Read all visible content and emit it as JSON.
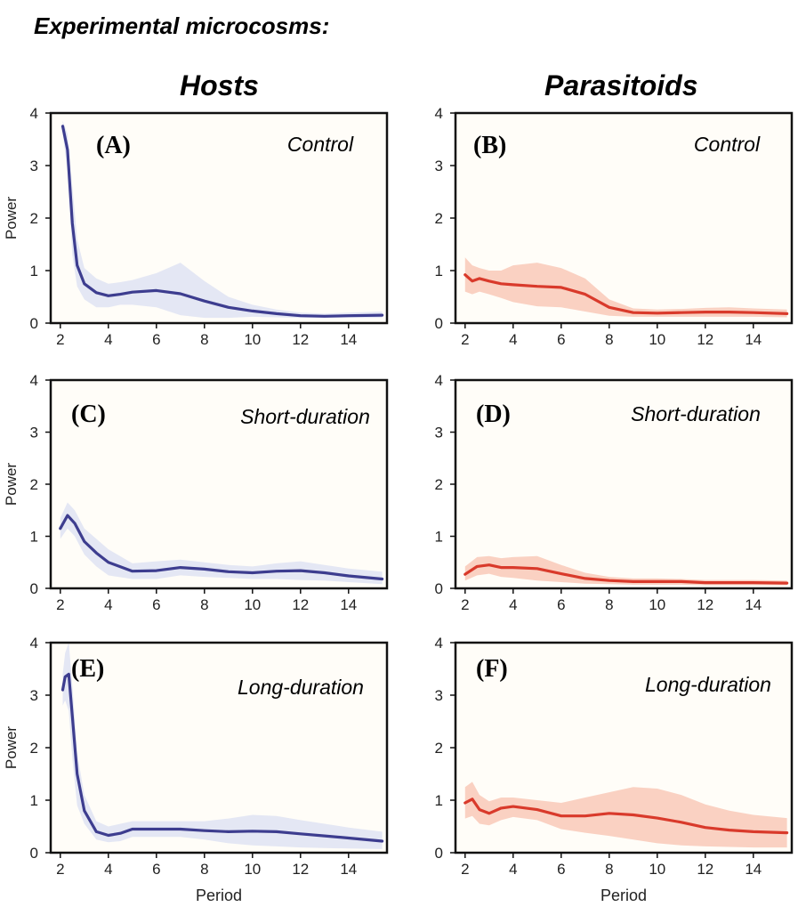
{
  "figure_title": "Experimental microcosms:",
  "column_titles": [
    "Hosts",
    "Parasitoids"
  ],
  "colors": {
    "hosts_line": "#3d3d8f",
    "hosts_band": "#dfe3f3",
    "parasitoids_line": "#d93a2b",
    "parasitoids_band": "#f9c9b8",
    "panel_bg": "#fffdf8",
    "frame": "#111111"
  },
  "chart_data": [
    {
      "type": "line",
      "panel": "(A)",
      "column": "Hosts",
      "treatment": "Control",
      "xlabel": "",
      "ylabel": "Power",
      "xlim": [
        1.6,
        15.6
      ],
      "ylim": [
        0,
        4
      ],
      "x_ticks": [
        2,
        4,
        6,
        8,
        10,
        12,
        14
      ],
      "y_ticks": [
        0,
        1,
        2,
        3,
        4
      ],
      "x": [
        2.1,
        2.3,
        2.5,
        2.7,
        3,
        3.5,
        4,
        4.5,
        5,
        6,
        7,
        8,
        9,
        10,
        11,
        12,
        13,
        14,
        15.4
      ],
      "mean": [
        3.75,
        3.3,
        1.9,
        1.1,
        0.75,
        0.58,
        0.52,
        0.55,
        0.59,
        0.62,
        0.56,
        0.42,
        0.3,
        0.23,
        0.18,
        0.14,
        0.13,
        0.14,
        0.15
      ],
      "upper": [
        3.85,
        3.6,
        2.6,
        1.6,
        1.05,
        0.85,
        0.75,
        0.78,
        0.82,
        0.95,
        1.15,
        0.8,
        0.5,
        0.35,
        0.26,
        0.2,
        0.18,
        0.2,
        0.22
      ],
      "lower": [
        3.6,
        2.9,
        1.3,
        0.7,
        0.45,
        0.3,
        0.3,
        0.35,
        0.35,
        0.3,
        0.15,
        0.1,
        0.1,
        0.12,
        0.11,
        0.1,
        0.1,
        0.1,
        0.1
      ]
    },
    {
      "type": "line",
      "panel": "(B)",
      "column": "Parasitoids",
      "treatment": "Control",
      "xlabel": "",
      "ylabel": "",
      "xlim": [
        1.6,
        15.6
      ],
      "ylim": [
        0,
        4
      ],
      "x_ticks": [
        2,
        4,
        6,
        8,
        10,
        12,
        14
      ],
      "y_ticks": [
        0,
        1,
        2,
        3,
        4
      ],
      "x": [
        2,
        2.3,
        2.6,
        3,
        3.5,
        4,
        5,
        6,
        7,
        8,
        9,
        10,
        11,
        12,
        13,
        14,
        15.4
      ],
      "mean": [
        0.92,
        0.8,
        0.85,
        0.8,
        0.75,
        0.73,
        0.7,
        0.68,
        0.55,
        0.3,
        0.2,
        0.19,
        0.2,
        0.21,
        0.21,
        0.2,
        0.18
      ],
      "upper": [
        1.25,
        1.1,
        1.05,
        1.0,
        1.0,
        1.1,
        1.15,
        1.05,
        0.85,
        0.45,
        0.28,
        0.26,
        0.27,
        0.29,
        0.3,
        0.28,
        0.26
      ],
      "lower": [
        0.6,
        0.55,
        0.6,
        0.55,
        0.48,
        0.4,
        0.32,
        0.3,
        0.22,
        0.14,
        0.12,
        0.12,
        0.12,
        0.12,
        0.12,
        0.12,
        0.11
      ]
    },
    {
      "type": "line",
      "panel": "(C)",
      "column": "Hosts",
      "treatment": "Short-duration",
      "xlabel": "",
      "ylabel": "Power",
      "xlim": [
        1.6,
        15.6
      ],
      "ylim": [
        0,
        4
      ],
      "x_ticks": [
        2,
        4,
        6,
        8,
        10,
        12,
        14
      ],
      "y_ticks": [
        0,
        1,
        2,
        3,
        4
      ],
      "x": [
        2,
        2.3,
        2.6,
        3,
        3.5,
        4,
        5,
        6,
        7,
        8,
        9,
        10,
        11,
        12,
        13,
        14,
        15.4
      ],
      "mean": [
        1.15,
        1.4,
        1.25,
        0.9,
        0.68,
        0.5,
        0.33,
        0.34,
        0.4,
        0.37,
        0.32,
        0.3,
        0.33,
        0.34,
        0.3,
        0.24,
        0.18
      ],
      "upper": [
        1.35,
        1.65,
        1.5,
        1.15,
        0.95,
        0.75,
        0.48,
        0.52,
        0.55,
        0.5,
        0.45,
        0.42,
        0.48,
        0.52,
        0.45,
        0.38,
        0.32
      ],
      "lower": [
        0.95,
        1.15,
        1.0,
        0.65,
        0.42,
        0.25,
        0.18,
        0.18,
        0.25,
        0.22,
        0.2,
        0.18,
        0.18,
        0.16,
        0.15,
        0.12,
        0.08
      ]
    },
    {
      "type": "line",
      "panel": "(D)",
      "column": "Parasitoids",
      "treatment": "Short-duration",
      "xlabel": "",
      "ylabel": "",
      "xlim": [
        1.6,
        15.6
      ],
      "ylim": [
        0,
        4
      ],
      "x_ticks": [
        2,
        4,
        6,
        8,
        10,
        12,
        14
      ],
      "y_ticks": [
        0,
        1,
        2,
        3,
        4
      ],
      "x": [
        2,
        2.5,
        3,
        3.5,
        4,
        5,
        6,
        7,
        8,
        9,
        10,
        11,
        12,
        13,
        14,
        15.4
      ],
      "mean": [
        0.27,
        0.42,
        0.45,
        0.4,
        0.4,
        0.38,
        0.28,
        0.19,
        0.15,
        0.13,
        0.13,
        0.13,
        0.11,
        0.11,
        0.11,
        0.1
      ],
      "upper": [
        0.42,
        0.6,
        0.62,
        0.58,
        0.6,
        0.62,
        0.45,
        0.3,
        0.22,
        0.19,
        0.19,
        0.18,
        0.16,
        0.16,
        0.16,
        0.15
      ],
      "lower": [
        0.15,
        0.25,
        0.28,
        0.22,
        0.2,
        0.15,
        0.12,
        0.09,
        0.08,
        0.07,
        0.07,
        0.07,
        0.06,
        0.06,
        0.06,
        0.06
      ]
    },
    {
      "type": "line",
      "panel": "(E)",
      "column": "Hosts",
      "treatment": "Long-duration",
      "xlabel": "Period",
      "ylabel": "Power",
      "xlim": [
        1.6,
        15.6
      ],
      "ylim": [
        0,
        4
      ],
      "x_ticks": [
        2,
        4,
        6,
        8,
        10,
        12,
        14
      ],
      "y_ticks": [
        0,
        1,
        2,
        3,
        4
      ],
      "x": [
        2.1,
        2.2,
        2.35,
        2.5,
        2.7,
        3,
        3.5,
        4,
        4.5,
        5,
        6,
        7,
        8,
        9,
        10,
        11,
        12,
        13,
        14,
        15.4
      ],
      "mean": [
        3.1,
        3.35,
        3.4,
        2.6,
        1.5,
        0.8,
        0.4,
        0.33,
        0.37,
        0.45,
        0.45,
        0.45,
        0.42,
        0.4,
        0.41,
        0.4,
        0.36,
        0.32,
        0.28,
        0.22
      ],
      "upper": [
        3.4,
        3.8,
        4.0,
        3.2,
        1.9,
        1.1,
        0.6,
        0.5,
        0.55,
        0.6,
        0.6,
        0.6,
        0.6,
        0.65,
        0.72,
        0.7,
        0.62,
        0.55,
        0.48,
        0.4
      ],
      "lower": [
        2.8,
        2.9,
        2.7,
        1.8,
        0.9,
        0.55,
        0.25,
        0.2,
        0.22,
        0.3,
        0.3,
        0.3,
        0.25,
        0.18,
        0.14,
        0.12,
        0.1,
        0.09,
        0.08,
        0.07
      ]
    },
    {
      "type": "line",
      "panel": "(F)",
      "column": "Parasitoids",
      "treatment": "Long-duration",
      "xlabel": "Period",
      "ylabel": "",
      "xlim": [
        1.6,
        15.6
      ],
      "ylim": [
        0,
        4
      ],
      "x_ticks": [
        2,
        4,
        6,
        8,
        10,
        12,
        14
      ],
      "y_ticks": [
        0,
        1,
        2,
        3,
        4
      ],
      "x": [
        2,
        2.3,
        2.6,
        3,
        3.5,
        4,
        5,
        6,
        7,
        8,
        9,
        10,
        11,
        12,
        13,
        14,
        15.4
      ],
      "mean": [
        0.95,
        1.02,
        0.82,
        0.75,
        0.85,
        0.88,
        0.82,
        0.7,
        0.7,
        0.75,
        0.72,
        0.66,
        0.58,
        0.48,
        0.43,
        0.4,
        0.38
      ],
      "upper": [
        1.25,
        1.35,
        1.1,
        0.98,
        1.05,
        1.05,
        1.0,
        0.95,
        1.05,
        1.15,
        1.25,
        1.22,
        1.1,
        0.92,
        0.8,
        0.72,
        0.66
      ],
      "lower": [
        0.65,
        0.7,
        0.55,
        0.52,
        0.62,
        0.68,
        0.62,
        0.45,
        0.38,
        0.32,
        0.25,
        0.18,
        0.14,
        0.12,
        0.11,
        0.1,
        0.1
      ]
    }
  ]
}
